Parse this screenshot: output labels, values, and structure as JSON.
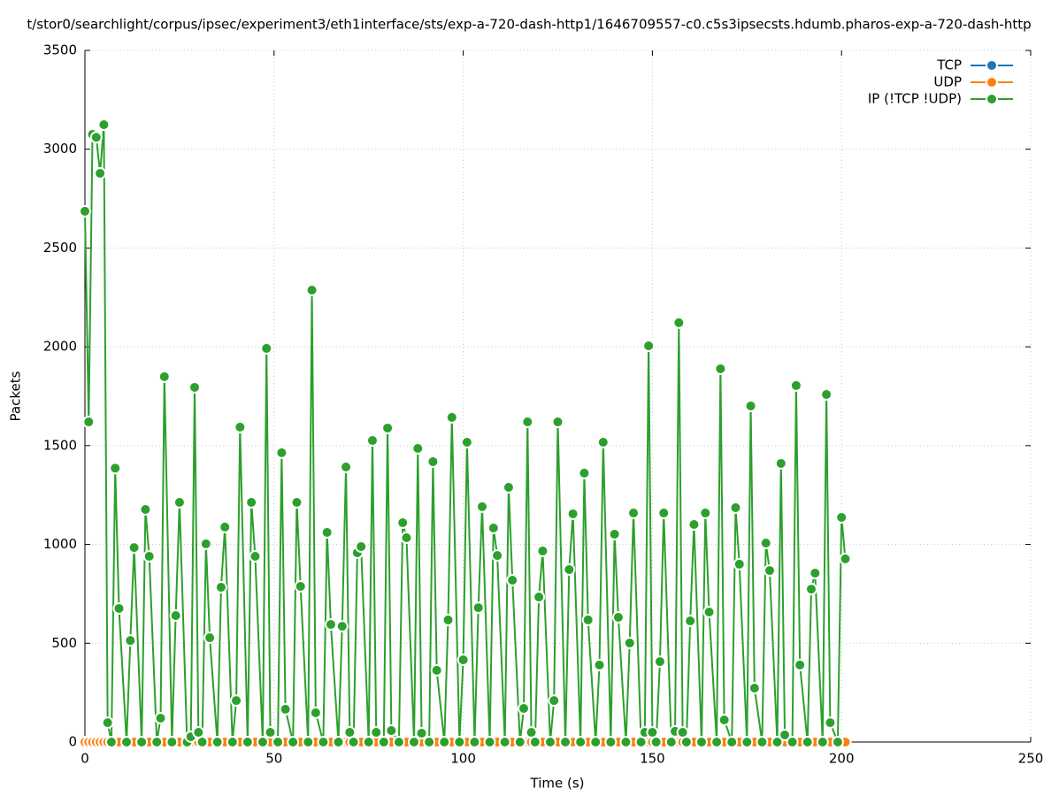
{
  "chart_data": {
    "type": "line",
    "title": "t/stor0/searchlight/corpus/ipsec/experiment3/eth1interface/sts/exp-a-720-dash-http1/1646709557-c0.c5s3ipsecsts.hdumb.pharos-exp-a-720-dash-http",
    "x_label": "Time (s)",
    "y_label": "Packets",
    "xlim": [
      0,
      250
    ],
    "xticks": [
      0,
      50,
      100,
      150,
      200,
      250
    ],
    "ylim": [
      0,
      3500
    ],
    "yticks": [
      0,
      500,
      1000,
      1500,
      2000,
      2500,
      3000,
      3500
    ],
    "grid": true,
    "legend": "top right",
    "x": [
      0,
      1,
      2,
      3,
      4,
      5,
      6,
      7,
      8,
      9,
      11,
      12,
      13,
      15,
      16,
      17,
      19,
      20,
      21,
      23,
      24,
      25,
      27,
      28,
      29,
      30,
      31,
      32,
      33,
      35,
      36,
      37,
      39,
      40,
      41,
      43,
      44,
      45,
      47,
      48,
      49,
      51,
      52,
      53,
      55,
      56,
      57,
      59,
      60,
      61,
      63,
      64,
      65,
      67,
      68,
      69,
      70,
      71,
      72,
      73,
      75,
      76,
      77,
      79,
      80,
      81,
      83,
      84,
      85,
      87,
      88,
      89,
      91,
      92,
      93,
      95,
      96,
      97,
      99,
      100,
      101,
      103,
      104,
      105,
      107,
      108,
      109,
      111,
      112,
      113,
      115,
      116,
      117,
      118,
      119,
      120,
      121,
      123,
      124,
      125,
      127,
      128,
      129,
      131,
      132,
      133,
      135,
      136,
      137,
      139,
      140,
      141,
      143,
      144,
      145,
      147,
      148,
      149,
      150,
      151,
      152,
      153,
      155,
      156,
      157,
      158,
      159,
      160,
      161,
      163,
      164,
      165,
      167,
      168,
      169,
      171,
      172,
      173,
      175,
      176,
      177,
      179,
      180,
      181,
      183,
      184,
      185,
      187,
      188,
      189,
      191,
      192,
      193,
      195,
      196,
      197,
      199,
      200,
      201
    ],
    "series": [
      {
        "name": "TCP",
        "color": "#1f77b4",
        "values": [
          0,
          0,
          0,
          0,
          0,
          0,
          0,
          0,
          0,
          0,
          0,
          0,
          0,
          0,
          0,
          0,
          0,
          0,
          0,
          0,
          0,
          0,
          0,
          0,
          0,
          0,
          0,
          0,
          0,
          0,
          0,
          0,
          0,
          0,
          0,
          0,
          0,
          0,
          0,
          0,
          0,
          0,
          0,
          0,
          0,
          0,
          0,
          0,
          0,
          0,
          0,
          0,
          0,
          0,
          0,
          0,
          0,
          0,
          0,
          0,
          0,
          0,
          0,
          0,
          0,
          0,
          0,
          0,
          0,
          0,
          0,
          0,
          0,
          0,
          0,
          0,
          0,
          0,
          0,
          0,
          0,
          0,
          0,
          0,
          0,
          0,
          0,
          0,
          0,
          0,
          0,
          0,
          0,
          0,
          0,
          0,
          0,
          0,
          0,
          0,
          0,
          0,
          0,
          0,
          0,
          0,
          0,
          0,
          0,
          0,
          0,
          0,
          0,
          0,
          0,
          0,
          0,
          0,
          0,
          0,
          0,
          0,
          0,
          0,
          0,
          0,
          0,
          0,
          0,
          0,
          0,
          0,
          0,
          0,
          0,
          0,
          0,
          0,
          0,
          0,
          0,
          0,
          0,
          0,
          0,
          0,
          0,
          0,
          0,
          0,
          0,
          0,
          0,
          0,
          0,
          0,
          0,
          0,
          0
        ]
      },
      {
        "name": "UDP",
        "color": "#ff7f0e",
        "values": [
          0,
          0,
          0,
          0,
          0,
          0,
          0,
          0,
          0,
          0,
          0,
          0,
          0,
          0,
          0,
          0,
          0,
          0,
          0,
          0,
          0,
          0,
          0,
          0,
          0,
          0,
          0,
          0,
          0,
          0,
          0,
          0,
          0,
          0,
          0,
          0,
          0,
          0,
          0,
          0,
          0,
          0,
          0,
          0,
          0,
          0,
          0,
          0,
          0,
          0,
          0,
          0,
          0,
          0,
          0,
          0,
          0,
          0,
          0,
          0,
          0,
          0,
          0,
          0,
          0,
          0,
          0,
          0,
          0,
          0,
          0,
          0,
          0,
          0,
          0,
          0,
          0,
          0,
          0,
          0,
          0,
          0,
          0,
          0,
          0,
          0,
          0,
          0,
          0,
          0,
          0,
          0,
          0,
          0,
          0,
          0,
          0,
          0,
          0,
          0,
          0,
          0,
          0,
          0,
          0,
          0,
          0,
          0,
          0,
          0,
          0,
          0,
          0,
          0,
          0,
          0,
          0,
          0,
          0,
          0,
          0,
          0,
          0,
          0,
          0,
          0,
          0,
          0,
          0,
          0,
          0,
          0,
          0,
          0,
          0,
          0,
          0,
          0,
          0,
          0,
          0,
          0,
          0,
          0,
          0,
          0,
          0,
          0,
          0,
          0,
          0,
          0,
          0,
          0,
          0,
          0,
          0,
          0,
          0
        ]
      },
      {
        "name": "IP (!TCP  !UDP)",
        "color": "#2ca02c",
        "values": [
          2686,
          1620,
          3075,
          3060,
          2878,
          3124,
          98,
          0,
          1386,
          676,
          0,
          514,
          984,
          0,
          1177,
          940,
          0,
          121,
          1849,
          0,
          640,
          1213,
          0,
          27,
          1795,
          49,
          0,
          1003,
          528,
          0,
          783,
          1088,
          0,
          210,
          1594,
          0,
          1213,
          940,
          0,
          1992,
          49,
          0,
          1464,
          166,
          0,
          1213,
          788,
          0,
          2287,
          148,
          0,
          1061,
          595,
          0,
          586,
          1392,
          49,
          0,
          958,
          989,
          0,
          1526,
          49,
          0,
          1589,
          58,
          0,
          1110,
          1034,
          0,
          1486,
          45,
          0,
          1419,
          363,
          0,
          618,
          1643,
          0,
          416,
          1517,
          0,
          680,
          1191,
          0,
          1083,
          944,
          0,
          1289,
          819,
          0,
          170,
          1620,
          49,
          0,
          734,
          967,
          0,
          210,
          1620,
          0,
          873,
          1155,
          0,
          1361,
          618,
          0,
          390,
          1517,
          0,
          1052,
          631,
          0,
          501,
          1159,
          0,
          49,
          2005,
          49,
          0,
          407,
          1159,
          0,
          54,
          2122,
          49,
          0,
          613,
          1101,
          0,
          1159,
          658,
          0,
          1889,
          112,
          0,
          1186,
          900,
          0,
          1701,
          273,
          0,
          1007,
          868,
          0,
          1410,
          36,
          0,
          1804,
          390,
          0,
          774,
          855,
          0,
          1759,
          98,
          0,
          1137,
          927
        ]
      }
    ]
  }
}
